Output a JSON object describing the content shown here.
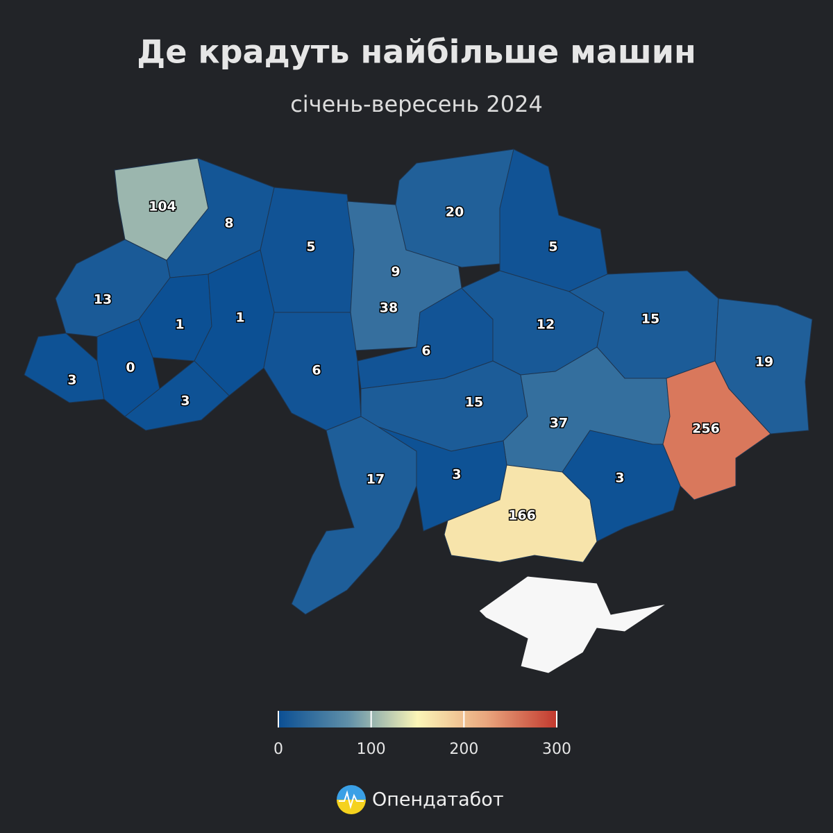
{
  "chart_data": {
    "type": "choropleth",
    "title": "Де крадуть найбільше машин",
    "subtitle": "січень-вересень 2024",
    "values": [
      104,
      8,
      5,
      9,
      38,
      20,
      5,
      13,
      1,
      1,
      3,
      0,
      3,
      6,
      6,
      12,
      15,
      19,
      15,
      37,
      256,
      17,
      3,
      166,
      3
    ],
    "colorscale": [
      "#0b4f94",
      "#5f8fa8",
      "#fbf5b7",
      "#e9a57d",
      "#c2392e"
    ],
    "clim": [
      0,
      300
    ],
    "cticks": [
      0,
      100,
      200,
      300
    ]
  },
  "brand": "Опендатабот"
}
